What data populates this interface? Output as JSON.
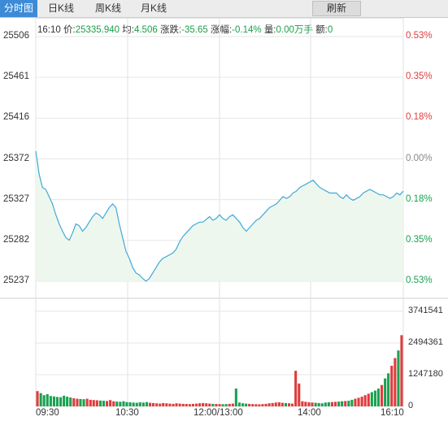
{
  "tabs": [
    {
      "key": "fenshi",
      "label": "分时图",
      "active": true
    },
    {
      "key": "day",
      "label": "日K线",
      "active": false
    },
    {
      "key": "week",
      "label": "周K线",
      "active": false
    },
    {
      "key": "month",
      "label": "月K线",
      "active": false
    }
  ],
  "refresh_label": "刷新",
  "info": {
    "time": "16:10",
    "price_label": "价:",
    "price": "25335.940",
    "avg_label": "均:",
    "avg": "4.506",
    "change_label": "涨跌:",
    "change": "-35.65",
    "pct_label": "涨幅:",
    "pct": "-0.14%",
    "vol_label": "量:",
    "vol": "0.00万手",
    "amount_label": "额:",
    "amount": "0"
  },
  "colors": {
    "line": "#41a9d8",
    "fill": "#eef7ee",
    "up": "#e03c3c",
    "down": "#1aa152",
    "grid": "#e6e6e6",
    "axis": "#cc3333",
    "tab_active": "#3d8bd6"
  },
  "chart_data": {
    "type": "line",
    "price_axis": [
      "25506",
      "25461",
      "25416",
      "25372",
      "25327",
      "25282",
      "25237"
    ],
    "pct_axis": [
      "0.53%",
      "0.35%",
      "0.18%",
      "0.00%",
      "0.18%",
      "0.35%",
      "0.53%"
    ],
    "x_ticks": [
      "09:30",
      "10:30",
      "12:00/13:00",
      "14:00",
      "16:10"
    ],
    "volume_axis": [
      "3741541",
      "2494361",
      "1247180",
      "0"
    ],
    "ylim": [
      25237,
      25506
    ],
    "prev_close": 25372,
    "price_series": [
      25380,
      25355,
      25340,
      25338,
      25330,
      25322,
      25310,
      25300,
      25292,
      25285,
      25282,
      25290,
      25300,
      25298,
      25292,
      25296,
      25302,
      25308,
      25312,
      25310,
      25306,
      25312,
      25318,
      25322,
      25318,
      25300,
      25285,
      25270,
      25262,
      25252,
      25246,
      25244,
      25240,
      25237,
      25240,
      25246,
      25252,
      25258,
      25262,
      25264,
      25266,
      25268,
      25272,
      25280,
      25286,
      25290,
      25294,
      25298,
      25300,
      25302,
      25302,
      25305,
      25308,
      25304,
      25306,
      25310,
      25306,
      25304,
      25308,
      25310,
      25306,
      25302,
      25296,
      25292,
      25296,
      25300,
      25304,
      25306,
      25310,
      25314,
      25318,
      25320,
      25322,
      25326,
      25330,
      25328,
      25330,
      25334,
      25336,
      25340,
      25342,
      25344,
      25346,
      25348,
      25344,
      25340,
      25338,
      25336,
      25334,
      25334,
      25334,
      25330,
      25328,
      25332,
      25328,
      25326,
      25328,
      25330,
      25334,
      25336,
      25338,
      25336,
      25334,
      25332,
      25332,
      25330,
      25328,
      25330,
      25334,
      25332,
      25336
    ],
    "volume_series": [
      600000,
      520000,
      440000,
      480000,
      410000,
      390000,
      370000,
      360000,
      420000,
      380000,
      350000,
      320000,
      300000,
      290000,
      280000,
      300000,
      260000,
      250000,
      240000,
      230000,
      220000,
      210000,
      250000,
      200000,
      190000,
      180000,
      200000,
      170000,
      160000,
      150000,
      140000,
      160000,
      150000,
      170000,
      140000,
      130000,
      120000,
      110000,
      130000,
      120000,
      110000,
      100000,
      120000,
      110000,
      100000,
      95000,
      90000,
      100000,
      110000,
      120000,
      130000,
      120000,
      110000,
      100000,
      95000,
      90000,
      85000,
      90000,
      100000,
      110000,
      700000,
      150000,
      120000,
      110000,
      100000,
      90000,
      85000,
      80000,
      90000,
      100000,
      120000,
      130000,
      150000,
      160000,
      140000,
      130000,
      120000,
      110000,
      1400000,
      900000,
      200000,
      180000,
      160000,
      150000,
      140000,
      130000,
      120000,
      150000,
      160000,
      170000,
      180000,
      190000,
      200000,
      210000,
      220000,
      260000,
      300000,
      340000,
      380000,
      440000,
      500000,
      560000,
      620000,
      700000,
      840000,
      1100000,
      1300000,
      1600000,
      1900000,
      2200000,
      2800000
    ]
  }
}
